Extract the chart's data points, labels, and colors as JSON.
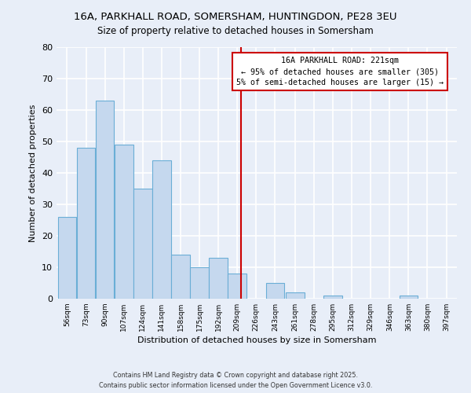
{
  "title": "16A, PARKHALL ROAD, SOMERSHAM, HUNTINGDON, PE28 3EU",
  "subtitle": "Size of property relative to detached houses in Somersham",
  "xlabel": "Distribution of detached houses by size in Somersham",
  "ylabel": "Number of detached properties",
  "bin_labels": [
    "56sqm",
    "73sqm",
    "90sqm",
    "107sqm",
    "124sqm",
    "141sqm",
    "158sqm",
    "175sqm",
    "192sqm",
    "209sqm",
    "226sqm",
    "243sqm",
    "261sqm",
    "278sqm",
    "295sqm",
    "312sqm",
    "329sqm",
    "346sqm",
    "363sqm",
    "380sqm",
    "397sqm"
  ],
  "bin_edges": [
    56,
    73,
    90,
    107,
    124,
    141,
    158,
    175,
    192,
    209,
    226,
    243,
    261,
    278,
    295,
    312,
    329,
    346,
    363,
    380,
    397
  ],
  "bar_heights": [
    26,
    48,
    63,
    49,
    35,
    44,
    14,
    10,
    13,
    8,
    0,
    5,
    2,
    0,
    1,
    0,
    0,
    0,
    1,
    0,
    0
  ],
  "bar_color": "#c5d8ee",
  "bar_edge_color": "#6aaed6",
  "vline_x": 221,
  "vline_color": "#cc0000",
  "annotation_title": "16A PARKHALL ROAD: 221sqm",
  "annotation_line1": "← 95% of detached houses are smaller (305)",
  "annotation_line2": "5% of semi-detached houses are larger (15) →",
  "ylim": [
    0,
    80
  ],
  "yticks": [
    0,
    10,
    20,
    30,
    40,
    50,
    60,
    70,
    80
  ],
  "footer_line1": "Contains HM Land Registry data © Crown copyright and database right 2025.",
  "footer_line2": "Contains public sector information licensed under the Open Government Licence v3.0.",
  "background_color": "#e8eef8",
  "plot_bg_color": "#e8eef8",
  "grid_color": "#ffffff"
}
